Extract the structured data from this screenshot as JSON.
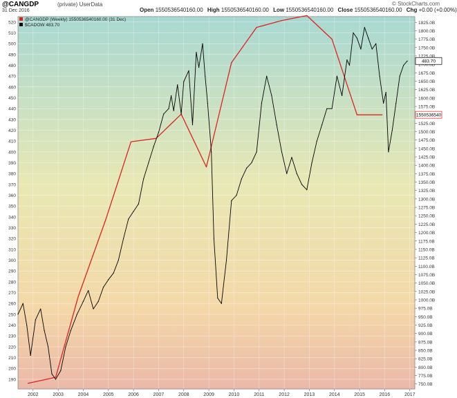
{
  "header": {
    "title": "@CANGDP",
    "title_note": "(private) UserData",
    "asof": "31 Dec 2016",
    "brand": "© StockCharts.com",
    "ohlc": [
      {
        "key": "Open",
        "value": "1550536540160.00"
      },
      {
        "key": "High",
        "value": "1550536540160.00"
      },
      {
        "key": "Low",
        "value": "1550536540160.00"
      },
      {
        "key": "Close",
        "value": "1550536540160.00"
      },
      {
        "key": "Chg",
        "value": "+0.00 (+0.00%)"
      }
    ]
  },
  "chart_data": {
    "type": "line",
    "title": "",
    "xlabel": "",
    "ylabel": "",
    "legend_placement": "top-left",
    "background_gradient": [
      "#a8d8d2",
      "#e8e8b4",
      "#f4d8a8",
      "#eab8a8"
    ],
    "grid": true,
    "x_ticks": [
      "2002",
      "2003",
      "2004",
      "2005",
      "2006",
      "2007",
      "2008",
      "2009",
      "2010",
      "2011",
      "2012",
      "2013",
      "2014",
      "2015",
      "2016",
      "2017"
    ],
    "xlim": [
      2001.4,
      2017.2
    ],
    "left_axis": {
      "ylim": [
        181,
        525
      ],
      "ticks": [
        190,
        200,
        210,
        220,
        230,
        240,
        250,
        260,
        270,
        280,
        290,
        300,
        310,
        320,
        330,
        340,
        350,
        360,
        370,
        380,
        390,
        400,
        410,
        420,
        430,
        440,
        450,
        460,
        470,
        480,
        490,
        500,
        510,
        520
      ]
    },
    "right_axis": {
      "ylim": [
        735,
        1842
      ],
      "ticks": [
        "750.0B",
        "775.0B",
        "800.0B",
        "825.0B",
        "850.0B",
        "875.0B",
        "900.0B",
        "925.0B",
        "950.0B",
        "975.0B",
        "1000.0B",
        "1025.0B",
        "1050.0B",
        "1075.0B",
        "1100.0B",
        "1125.0B",
        "1150.0B",
        "1175.0B",
        "1200.0B",
        "1225.0B",
        "1250.0B",
        "1275.0B",
        "1300.0B",
        "1325.0B",
        "1350.0B",
        "1375.0B",
        "1400.0B",
        "1425.0B",
        "1450.0B",
        "1475.0B",
        "1500.0B",
        "1525.0B",
        "1550.0B",
        "1575.0B",
        "1600.0B",
        "1625.0B",
        "1650.0B",
        "1675.0B",
        "1700.0B",
        "1725.0B",
        "1750.0B",
        "1775.0B",
        "1800.0B",
        "1825.0B"
      ]
    },
    "series": [
      {
        "name": "@CANGDP (Weekly) 1550536540160.00 (31 Dec)",
        "axis": "right",
        "color": "#e02020",
        "current_label": "1550536540",
        "x": [
          2001.8,
          2002.9,
          2003.8,
          2004.9,
          2005.9,
          2006.9,
          2007.9,
          2008.9,
          2009.9,
          2010.9,
          2011.9,
          2012.9,
          2013.9,
          2014.9,
          2015.9
        ],
        "values": [
          752,
          770,
          1010,
          1240,
          1470,
          1480,
          1552,
          1395,
          1705,
          1810,
          1830,
          1845,
          1775,
          1550,
          1550
        ]
      },
      {
        "name": "$CADOW 483.70",
        "axis": "left",
        "color": "#000000",
        "current_label": "483.70",
        "x": [
          2001.4,
          2001.6,
          2001.75,
          2001.9,
          2002.1,
          2002.3,
          2002.45,
          2002.6,
          2002.75,
          2002.9,
          2003.1,
          2003.3,
          2003.5,
          2003.75,
          2004.0,
          2004.2,
          2004.4,
          2004.6,
          2004.8,
          2005.0,
          2005.2,
          2005.4,
          2005.6,
          2005.8,
          2006.0,
          2006.2,
          2006.4,
          2006.6,
          2006.8,
          2007.0,
          2007.2,
          2007.4,
          2007.5,
          2007.6,
          2007.75,
          2007.9,
          2008.0,
          2008.2,
          2008.35,
          2008.5,
          2008.6,
          2008.75,
          2008.85,
          2008.95,
          2009.1,
          2009.2,
          2009.35,
          2009.5,
          2009.7,
          2009.9,
          2010.1,
          2010.3,
          2010.5,
          2010.7,
          2010.9,
          2011.1,
          2011.3,
          2011.5,
          2011.7,
          2011.9,
          2012.1,
          2012.3,
          2012.5,
          2012.7,
          2012.9,
          2013.1,
          2013.3,
          2013.5,
          2013.7,
          2013.9,
          2014.1,
          2014.3,
          2014.5,
          2014.6,
          2014.75,
          2014.9,
          2015.05,
          2015.2,
          2015.35,
          2015.5,
          2015.65,
          2015.8,
          2015.95,
          2016.05,
          2016.15,
          2016.3,
          2016.45,
          2016.6,
          2016.75,
          2016.9
        ],
        "values": [
          250,
          260,
          240,
          212,
          245,
          255,
          235,
          220,
          195,
          190,
          198,
          220,
          235,
          250,
          262,
          272,
          255,
          262,
          275,
          282,
          288,
          300,
          320,
          338,
          345,
          352,
          375,
          390,
          405,
          418,
          435,
          440,
          452,
          438,
          462,
          435,
          465,
          475,
          425,
          492,
          478,
          500,
          470,
          445,
          400,
          320,
          265,
          260,
          300,
          355,
          360,
          375,
          385,
          390,
          400,
          445,
          470,
          452,
          425,
          400,
          380,
          395,
          380,
          370,
          365,
          390,
          410,
          425,
          440,
          440,
          470,
          452,
          485,
          480,
          510,
          505,
          495,
          515,
          505,
          495,
          500,
          470,
          445,
          455,
          400,
          420,
          445,
          470,
          480,
          484
        ]
      }
    ]
  }
}
